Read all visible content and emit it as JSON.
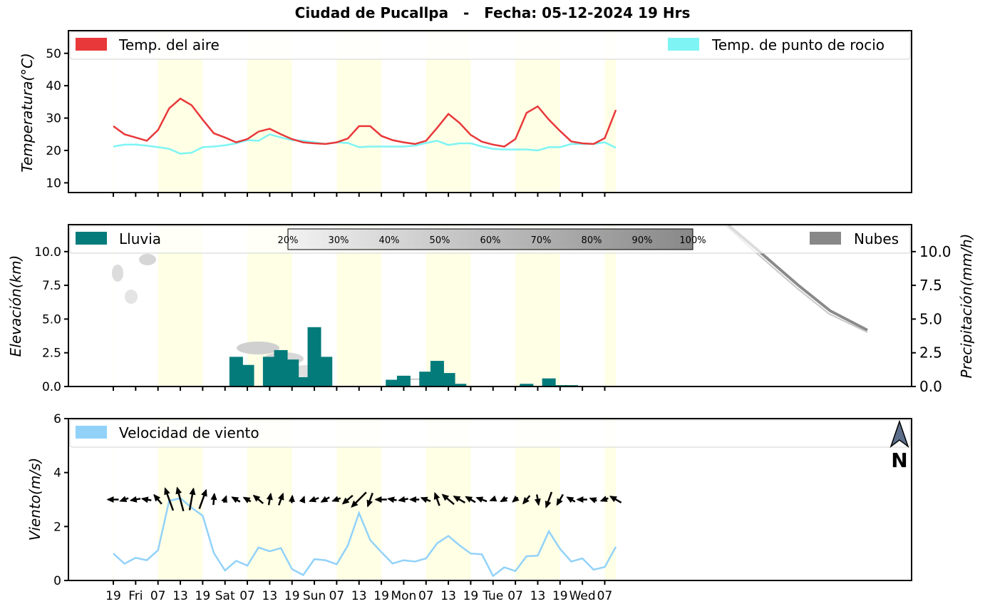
{
  "title": "Ciudad de Pucallpa   -   Fecha: 05-12-2024 19 Hrs",
  "colors": {
    "air_temp": "#e8383a",
    "dew_point": "#7ef4f4",
    "rain": "#037b7b",
    "clouds": "#888888",
    "wind": "#92d2f9",
    "daylight": "#ffffe6"
  },
  "x_tick_labels": [
    "19",
    "Fri",
    "07",
    "13",
    "19",
    "Sat",
    "07",
    "13",
    "19",
    "Sun",
    "07",
    "13",
    "19",
    "Mon",
    "07",
    "13",
    "19",
    "Tue",
    "07",
    "13",
    "19",
    "Wed",
    "07"
  ],
  "cloud_scale": [
    "20%",
    "30%",
    "40%",
    "50%",
    "60%",
    "70%",
    "80%",
    "90%",
    "100%"
  ],
  "north_label": "N",
  "chart_data": [
    {
      "type": "line",
      "ylabel": "Temperatura(°C)",
      "ylim": [
        7,
        57
      ],
      "yticks": [
        10,
        20,
        30,
        40,
        50
      ],
      "legend_placement": "top",
      "x_time_step_hours": 3,
      "series": [
        {
          "name": "Temp. del aire",
          "values": [
            27.5,
            25,
            24,
            23,
            26.3,
            33,
            36,
            34,
            29.5,
            25.3,
            24,
            22.5,
            23.5,
            25.8,
            26.7,
            25,
            23.5,
            22.5,
            22.2,
            22,
            22.5,
            23.7,
            27.5,
            27.5,
            24.5,
            23.2,
            22.5,
            22,
            23,
            27,
            31.3,
            28.5,
            24.8,
            22.7,
            21.8,
            21.2,
            23.5,
            31.6,
            33.6,
            29.5,
            26,
            22.8,
            22.2,
            22,
            23.8,
            32.5
          ]
        },
        {
          "name": "Temp. de punto de rocio",
          "values": [
            21.2,
            21.8,
            21.8,
            21.5,
            21,
            20.5,
            19,
            19.3,
            21,
            21.2,
            21.6,
            22.2,
            23.2,
            23,
            25,
            24,
            23.2,
            23,
            22.5,
            22,
            22.5,
            22.3,
            21,
            21.2,
            21.2,
            21.2,
            21.2,
            21.5,
            22.3,
            23,
            21.7,
            22.2,
            22.2,
            21.2,
            20.5,
            20.3,
            20.3,
            20.3,
            20,
            21,
            21,
            22,
            22,
            22,
            22.5,
            20.8
          ]
        }
      ]
    },
    {
      "type": "bar",
      "ylabel": "Elevación(km)",
      "ylim": [
        0,
        12
      ],
      "yticks": [
        0.0,
        2.5,
        5.0,
        7.5,
        10.0
      ],
      "ylabel_right": "Precipitación(mm/h)",
      "yticks_right": [
        0.0,
        2.5,
        5.0,
        7.5,
        10.0
      ],
      "legend_placement": "top",
      "series": [
        {
          "name": "Lluvia",
          "x_index": [
            11,
            12,
            14,
            15,
            16,
            17,
            18,
            19,
            25,
            26,
            28,
            29,
            30,
            31,
            37,
            39,
            40,
            41
          ],
          "values": [
            2.2,
            1.6,
            2.2,
            2.7,
            2.0,
            0.7,
            4.4,
            2.2,
            0.5,
            0.8,
            1.1,
            1.9,
            1.0,
            0.2,
            0.2,
            0.6,
            0.1,
            0.1
          ]
        },
        {
          "name": "Nubes"
        }
      ]
    },
    {
      "type": "line",
      "ylabel": "Viento(m/s)",
      "ylim": [
        0,
        6
      ],
      "yticks": [
        0,
        2,
        4,
        6
      ],
      "legend_placement": "top-left",
      "series": [
        {
          "name": "Velocidad de viento",
          "values": [
            1.0,
            0.62,
            0.84,
            0.75,
            1.12,
            2.95,
            3.05,
            2.7,
            2.4,
            1.02,
            0.37,
            0.73,
            0.55,
            1.22,
            1.08,
            1.2,
            0.42,
            0.2,
            0.79,
            0.75,
            0.6,
            1.3,
            2.5,
            1.5,
            1.05,
            0.63,
            0.75,
            0.7,
            0.82,
            1.38,
            1.65,
            1.3,
            1.0,
            0.97,
            0.17,
            0.49,
            0.35,
            0.9,
            0.92,
            1.82,
            1.17,
            0.7,
            0.82,
            0.4,
            0.5,
            1.25
          ]
        }
      ],
      "wind_direction_deg": [
        270,
        250,
        260,
        280,
        320,
        340,
        345,
        10,
        20,
        5,
        20,
        300,
        300,
        310,
        10,
        20,
        5,
        20,
        250,
        240,
        250,
        230,
        225,
        200,
        270,
        280,
        260,
        270,
        290,
        340,
        310,
        300,
        300,
        290,
        250,
        240,
        230,
        220,
        170,
        200,
        210,
        300,
        270,
        290,
        250,
        300
      ]
    }
  ]
}
